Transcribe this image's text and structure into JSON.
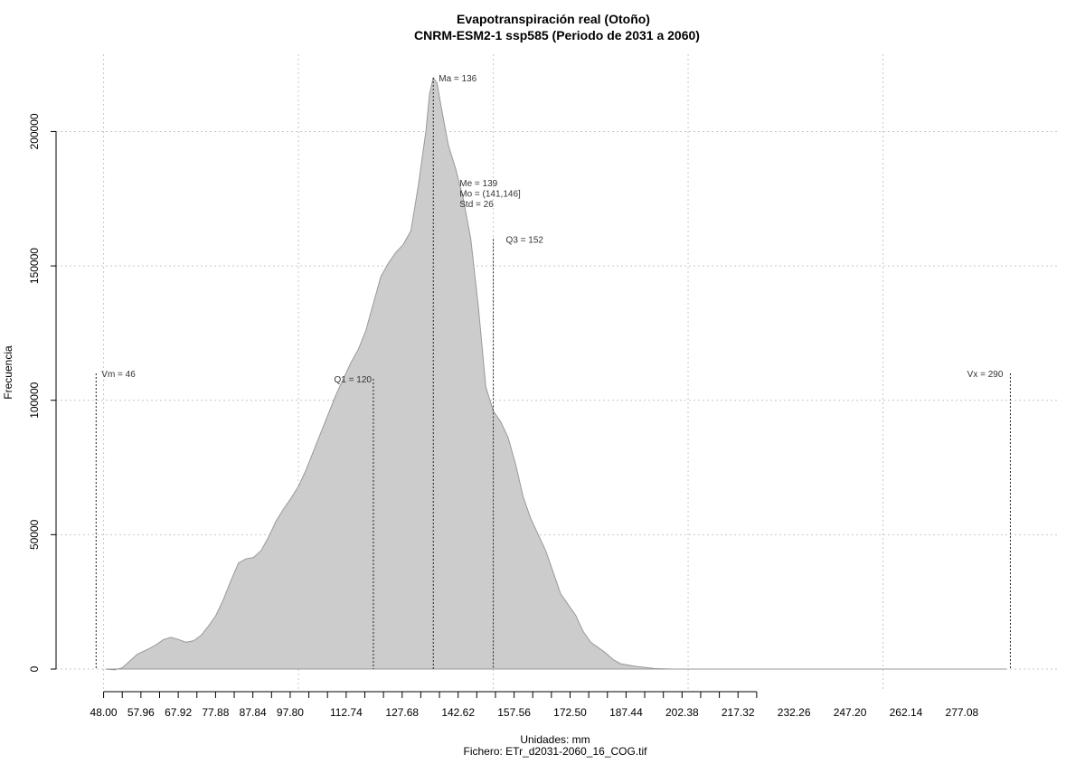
{
  "chart_data": {
    "type": "area",
    "title": "Evapotranspiración real (Otoño)",
    "subtitle": "CNRM-ESM2-1 ssp585 (Periodo de 2031 a 2060)",
    "xlabel": "Unidades: mm",
    "xlabel2": "Fichero: ETr_d2031-2060_16_COG.tif",
    "ylabel": "Frecuencia",
    "xlim": [
      44,
      294
    ],
    "ylim": [
      0,
      220000
    ],
    "x_ticks": [
      "48.00",
      "57.96",
      "67.92",
      "77.88",
      "87.84",
      "97.80",
      "112.74",
      "127.68",
      "142.62",
      "157.56",
      "172.50",
      "187.44",
      "202.38",
      "217.32",
      "232.26",
      "247.20",
      "262.14",
      "277.08"
    ],
    "y_ticks": [
      0,
      50000,
      100000,
      150000,
      200000
    ],
    "y_tick_labels": [
      "0",
      "50000",
      "100000",
      "150000",
      "200000"
    ],
    "grid": true,
    "grid_x": [
      48,
      100,
      152,
      204,
      256
    ],
    "fill_color": "#cccccc",
    "line_color": "#999999",
    "density": [
      [
        48.5,
        0
      ],
      [
        51,
        -300
      ],
      [
        53,
        500
      ],
      [
        55,
        3000
      ],
      [
        57,
        5500
      ],
      [
        60,
        7500
      ],
      [
        62,
        9000
      ],
      [
        64,
        11000
      ],
      [
        66,
        11800
      ],
      [
        68,
        11000
      ],
      [
        70,
        10000
      ],
      [
        72,
        10500
      ],
      [
        74,
        12500
      ],
      [
        76,
        16000
      ],
      [
        78,
        20000
      ],
      [
        80,
        26000
      ],
      [
        82,
        33000
      ],
      [
        84,
        39500
      ],
      [
        86,
        41000
      ],
      [
        88,
        41500
      ],
      [
        90,
        44000
      ],
      [
        92,
        49000
      ],
      [
        94,
        55000
      ],
      [
        96,
        59500
      ],
      [
        98,
        63500
      ],
      [
        100,
        68000
      ],
      [
        102,
        74000
      ],
      [
        104,
        81000
      ],
      [
        106,
        88000
      ],
      [
        108,
        95000
      ],
      [
        110,
        102000
      ],
      [
        112,
        108000
      ],
      [
        114,
        114000
      ],
      [
        116,
        119000
      ],
      [
        118,
        126000
      ],
      [
        120,
        136000
      ],
      [
        122,
        146000
      ],
      [
        124,
        151000
      ],
      [
        126,
        155000
      ],
      [
        128,
        158000
      ],
      [
        130,
        163000
      ],
      [
        132,
        180000
      ],
      [
        134,
        200000
      ],
      [
        135,
        214000
      ],
      [
        136,
        220000
      ],
      [
        137,
        218000
      ],
      [
        138,
        210000
      ],
      [
        140,
        195000
      ],
      [
        142,
        186000
      ],
      [
        144,
        175000
      ],
      [
        146,
        160000
      ],
      [
        148,
        135000
      ],
      [
        150,
        105000
      ],
      [
        152,
        96000
      ],
      [
        154,
        92000
      ],
      [
        156,
        86000
      ],
      [
        158,
        76000
      ],
      [
        160,
        64000
      ],
      [
        162,
        56000
      ],
      [
        164,
        50000
      ],
      [
        166,
        44000
      ],
      [
        168,
        36000
      ],
      [
        170,
        28000
      ],
      [
        172,
        24000
      ],
      [
        174,
        20000
      ],
      [
        176,
        14000
      ],
      [
        178,
        10000
      ],
      [
        180,
        8000
      ],
      [
        182,
        6000
      ],
      [
        184,
        3500
      ],
      [
        186,
        2000
      ],
      [
        190,
        1000
      ],
      [
        195,
        200
      ],
      [
        200,
        0
      ],
      [
        289,
        0
      ]
    ],
    "stat_lines": [
      {
        "x": 46,
        "ymax": 110000,
        "label": "Vm = 46",
        "anchor": "start",
        "dx": 6
      },
      {
        "x": 120,
        "ymax": 108000,
        "label": "Q1 = 120",
        "anchor": "end",
        "dx": -2
      },
      {
        "x": 136,
        "ymax": 220000,
        "label": "Ma = 136",
        "anchor": "start",
        "dx": 6
      },
      {
        "x": 152,
        "ymax": 160000,
        "label": "Q3 = 152",
        "anchor": "start",
        "dx": 14
      },
      {
        "x": 290,
        "ymax": 110000,
        "label": "Vx = 290",
        "anchor": "end",
        "dx": -8
      }
    ],
    "stat_text": [
      "Me = 139",
      "Mo = (141,146]",
      "Std = 26"
    ],
    "stat_text_x": 143
  }
}
